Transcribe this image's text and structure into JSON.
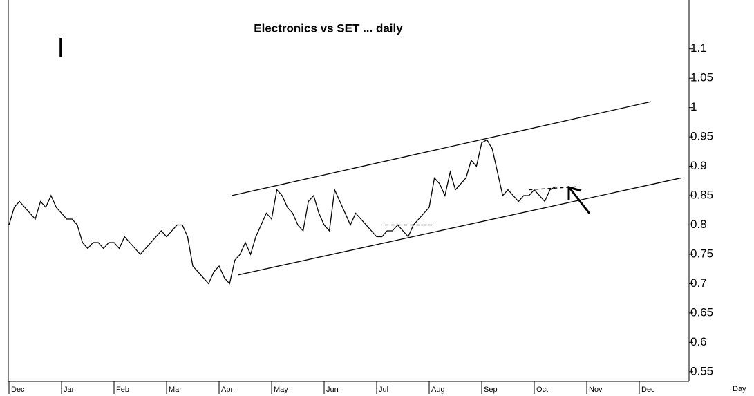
{
  "chart_data": {
    "type": "line",
    "title": "Electronics vs SET ... daily",
    "marker_text": "I",
    "x_label": "Day",
    "categories": [
      "Dec",
      null,
      null,
      null,
      null,
      null,
      null,
      null,
      null,
      null,
      "Jan",
      null,
      null,
      null,
      null,
      null,
      null,
      null,
      null,
      null,
      "Feb",
      null,
      null,
      null,
      null,
      null,
      null,
      null,
      null,
      null,
      "Mar",
      null,
      null,
      null,
      null,
      null,
      null,
      null,
      null,
      null,
      "Apr",
      null,
      null,
      null,
      null,
      null,
      null,
      null,
      null,
      null,
      "May",
      null,
      null,
      null,
      null,
      null,
      null,
      null,
      null,
      null,
      "Jun",
      null,
      null,
      null,
      null,
      null,
      null,
      null,
      null,
      null,
      "Jul",
      null,
      null,
      null,
      null,
      null,
      null,
      null,
      null,
      null,
      "Aug",
      null,
      null,
      null,
      null,
      null,
      null,
      null,
      null,
      null,
      "Sep",
      null,
      null,
      null,
      null,
      null,
      null,
      null,
      null,
      null,
      "Oct",
      null,
      null,
      null,
      null,
      null,
      null,
      null,
      null,
      null,
      "Nov",
      null,
      null,
      null,
      null,
      null,
      null,
      null,
      null,
      null,
      "Dec",
      null,
      null,
      null,
      null,
      null,
      null,
      null,
      null,
      null
    ],
    "series": [
      {
        "color": "#000000",
        "values": [
          0.8,
          0.83,
          0.84,
          0.83,
          0.82,
          0.81,
          0.84,
          0.83,
          0.85,
          0.83,
          0.82,
          0.81,
          0.81,
          0.8,
          0.77,
          0.76,
          0.77,
          0.77,
          0.76,
          0.77,
          0.77,
          0.76,
          0.78,
          0.77,
          0.76,
          0.75,
          0.76,
          0.77,
          0.78,
          0.79,
          0.78,
          0.79,
          0.8,
          0.8,
          0.78,
          0.73,
          0.72,
          0.71,
          0.7,
          0.72,
          0.73,
          0.71,
          0.7,
          0.74,
          0.75,
          0.77,
          0.75,
          0.78,
          0.8,
          0.82,
          0.81,
          0.86,
          0.85,
          0.83,
          0.82,
          0.8,
          0.79,
          0.84,
          0.85,
          0.82,
          0.8,
          0.79,
          0.86,
          0.84,
          0.82,
          0.8,
          0.82,
          0.81,
          0.8,
          0.79,
          0.78,
          0.78,
          0.79,
          0.79,
          0.8,
          0.79,
          0.78,
          0.8,
          0.81,
          0.82,
          0.83,
          0.88,
          0.87,
          0.85,
          0.89,
          0.86,
          0.87,
          0.88,
          0.91,
          0.9,
          0.94,
          0.945,
          0.93,
          0.89,
          0.85,
          0.86,
          0.85,
          0.84,
          0.85,
          0.85,
          0.86,
          0.85,
          0.84,
          0.86,
          0.865,
          null,
          null,
          null,
          null,
          null,
          null,
          null,
          null,
          null,
          null,
          null,
          null,
          null,
          null,
          null,
          null,
          null,
          null,
          null,
          null,
          null,
          null,
          null,
          null,
          null
        ]
      }
    ],
    "trendlines": [
      {
        "style": "solid",
        "from": [
          42.4,
          0.85
        ],
        "to": [
          122.2,
          1.01
        ]
      },
      {
        "style": "solid",
        "from": [
          43.7,
          0.715
        ],
        "to": [
          127.9,
          0.88
        ]
      },
      {
        "style": "dashed",
        "from": [
          71.6,
          0.8
        ],
        "to": [
          80.9,
          0.8
        ]
      },
      {
        "style": "dashed",
        "from": [
          99,
          0.86
        ],
        "to": [
          107.9,
          0.865
        ]
      }
    ],
    "ylim": [
      0.5333,
      1.1833
    ],
    "yticks": [
      0.55,
      0.6,
      0.65,
      0.7,
      0.75,
      0.8,
      0.85,
      0.9,
      0.95,
      1,
      1.05,
      1.1
    ]
  }
}
